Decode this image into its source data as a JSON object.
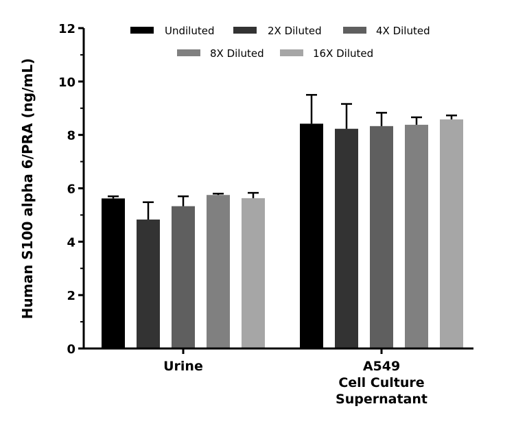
{
  "chart_data": {
    "type": "bar",
    "ylabel": "Human S100 alpha 6/PRA (ng/mL)",
    "xlabel": "",
    "ylim": [
      0,
      12
    ],
    "yticks": [
      0,
      2,
      4,
      6,
      8,
      10,
      12
    ],
    "legend_position": "top",
    "categories": [
      [
        "Urine"
      ],
      [
        "A549",
        "Cell Culture",
        "Supernatant"
      ]
    ],
    "series": [
      {
        "name": "Undiluted",
        "color": "#000000",
        "values": [
          5.62,
          8.42
        ],
        "errors": [
          0.08,
          1.08
        ]
      },
      {
        "name": "2X Diluted",
        "color": "#333333",
        "values": [
          4.83,
          8.23
        ],
        "errors": [
          0.65,
          0.93
        ]
      },
      {
        "name": "4X Diluted",
        "color": "#5f5f5f",
        "values": [
          5.33,
          8.33
        ],
        "errors": [
          0.37,
          0.5
        ]
      },
      {
        "name": "8X Diluted",
        "color": "#808080",
        "values": [
          5.75,
          8.38
        ],
        "errors": [
          0.05,
          0.28
        ]
      },
      {
        "name": "16X Diluted",
        "color": "#a6a6a6",
        "values": [
          5.63,
          8.58
        ],
        "errors": [
          0.2,
          0.15
        ]
      }
    ]
  }
}
